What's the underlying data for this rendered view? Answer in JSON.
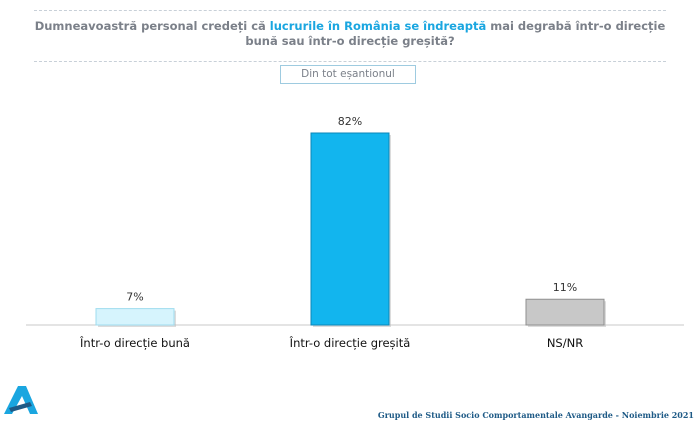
{
  "title": {
    "part1": "Dumneavoastră personal credeți că ",
    "highlight": "lucrurile în România se îndreaptă",
    "part2": " mai degrabă într-o direcție bună sau într-o direcție greșită?"
  },
  "subset_label": "Din tot eșantionul",
  "footer": "Grupul de Studii Socio Comportamentale Avangarde   - Noiembrie 2021",
  "colors": {
    "accent": "#1aa6e0",
    "title": "#7b8089",
    "bar_good": "#d6f4fd",
    "bar_bad": "#12b5ee",
    "bar_nsnr": "#c8c8c8",
    "footer": "#1e5a86"
  },
  "chart_data": {
    "type": "bar",
    "categories": [
      "Într-o direcție bună",
      "Într-o direcție greșită",
      "NS/NR"
    ],
    "values": [
      7,
      82,
      11
    ],
    "labels": [
      "7%",
      "82%",
      "11%"
    ],
    "ylim": [
      0,
      82
    ],
    "grid": false,
    "legend": "none"
  }
}
